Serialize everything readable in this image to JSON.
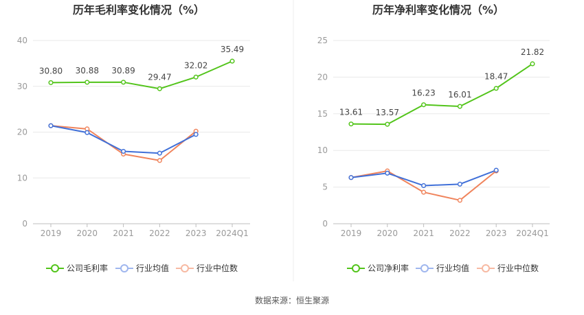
{
  "source_label": "数据来源：恒生聚源",
  "colors": {
    "company": "#52c41a",
    "industry_avg": "#3f6fd8",
    "industry_median": "#f0845c",
    "legend_avg": "#9fb6ee",
    "legend_median": "#f7b9a2",
    "axis": "#999999",
    "grid": "#e8e8e8",
    "title": "#333333",
    "label": "#444444"
  },
  "chart_data": [
    {
      "type": "line",
      "title": "历年毛利率变化情况（%）",
      "categories": [
        "2019",
        "2020",
        "2021",
        "2022",
        "2023",
        "2024Q1"
      ],
      "y_ticks": [
        "0",
        "10",
        "20",
        "30",
        "40"
      ],
      "ylim": [
        0,
        40
      ],
      "series": [
        {
          "name": "公司毛利率",
          "values": [
            30.8,
            30.88,
            30.89,
            29.47,
            32.02,
            35.49
          ],
          "labels": [
            "30.80",
            "30.88",
            "30.89",
            "29.47",
            "32.02",
            "35.49"
          ]
        },
        {
          "name": "行业均值",
          "values": [
            21.4,
            19.9,
            15.8,
            15.4,
            19.5,
            null
          ]
        },
        {
          "name": "行业中位数",
          "values": [
            21.4,
            20.7,
            15.2,
            13.8,
            20.2,
            null
          ]
        }
      ]
    },
    {
      "type": "line",
      "title": "历年净利率变化情况（%）",
      "categories": [
        "2019",
        "2020",
        "2021",
        "2022",
        "2023",
        "2024Q1"
      ],
      "y_ticks": [
        "0",
        "5",
        "10",
        "15",
        "20",
        "25"
      ],
      "ylim": [
        0,
        25
      ],
      "series": [
        {
          "name": "公司净利率",
          "values": [
            13.61,
            13.57,
            16.23,
            16.01,
            18.47,
            21.82
          ],
          "labels": [
            "13.61",
            "13.57",
            "16.23",
            "16.01",
            "18.47",
            "21.82"
          ]
        },
        {
          "name": "行业均值",
          "values": [
            6.3,
            6.9,
            5.2,
            5.4,
            7.3,
            null
          ]
        },
        {
          "name": "行业中位数",
          "values": [
            6.3,
            7.2,
            4.3,
            3.2,
            7.2,
            null
          ]
        }
      ]
    }
  ]
}
